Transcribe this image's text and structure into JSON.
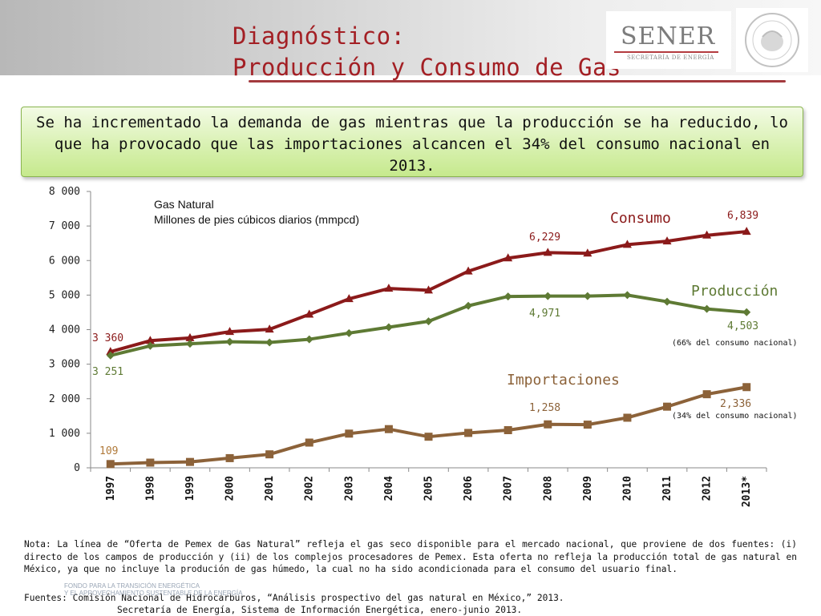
{
  "header": {
    "title_line1": "Diagnóstico:",
    "title_line2": "Producción y Consumo de Gas",
    "logo_text": "SENER",
    "logo_subtext": "SECRETARÍA DE ENERGÍA",
    "seal_text": "ESTADOS UNIDOS MEXICANOS"
  },
  "callout": {
    "text": "Se ha incrementado la demanda de gas mientras que la producción se ha reducido, lo que ha provocado que las importaciones alcancen el 34% del consumo nacional en 2013."
  },
  "chart_data": {
    "type": "line",
    "title": "Gas Natural",
    "subtitle": "Millones de pies cúbicos diarios (mmpcd)",
    "categories": [
      "1997",
      "1998",
      "1999",
      "2000",
      "2001",
      "2002",
      "2003",
      "2004",
      "2005",
      "2006",
      "2007",
      "2008",
      "2009",
      "2010",
      "2011",
      "2012",
      "2013*"
    ],
    "y_ticks": [
      "8 000",
      "7 000",
      "6 000",
      "5 000",
      "4 000",
      "3 000",
      "2 000",
      "1 000",
      "0"
    ],
    "ylim": [
      0,
      8000
    ],
    "grid": false,
    "series": [
      {
        "name": "Consumo",
        "color": "#8b1a1a",
        "marker": "triangle",
        "values": [
          3360,
          3680,
          3760,
          3940,
          4010,
          4440,
          4890,
          5190,
          5140,
          5690,
          6070,
          6229,
          6210,
          6460,
          6560,
          6730,
          6839
        ]
      },
      {
        "name": "Producción",
        "color": "#5e7a34",
        "marker": "diamond",
        "values": [
          3251,
          3530,
          3590,
          3650,
          3630,
          3720,
          3900,
          4070,
          4240,
          4690,
          4960,
          4971,
          4970,
          5000,
          4810,
          4600,
          4503
        ]
      },
      {
        "name": "Importaciones",
        "color": "#8c6239",
        "marker": "square",
        "values": [
          109,
          150,
          170,
          280,
          390,
          730,
          990,
          1120,
          900,
          1010,
          1090,
          1258,
          1250,
          1450,
          1770,
          2130,
          2336
        ]
      }
    ],
    "data_labels": {
      "consumo_1997": "3 360",
      "produccion_1997": "3 251",
      "importaciones_1997": "109",
      "consumo_2008": "6,229",
      "produccion_2008": "4,971",
      "importaciones_2008": "1,258",
      "consumo_2013": "6,839",
      "produccion_2013": "4,503",
      "importaciones_2013": "2,336"
    },
    "annotations": {
      "produccion_share": "(66% del consumo nacional)",
      "importaciones_share": "(34% del consumo nacional)"
    }
  },
  "footer": {
    "note": "Nota: La línea de “Oferta de Pemex de Gas Natural” refleja el gas seco disponible para el mercado nacional, que proviene de dos fuentes: (i) directo de los campos de producción y (ii) de los complejos procesadores de Pemex. Esta oferta no refleja la producción total de gas natural en México, ya que no incluye la produción de gas húmedo, la cual no ha sido acondicionada para el consumo del usuario final.",
    "fuentes_line1": "Fuentes: Comisión Nacional de Hidrocarburos, “Análisis prospectivo del gas natural en México,” 2013.",
    "fuentes_line2": "Secretaría de Energía, Sistema de Información Energética, enero-junio 2013.",
    "watermark_line1": "FONDO PARA LA TRANSICIÓN ENERGÉTICA",
    "watermark_line2": "Y EL APROVECHAMIENTO SUSTENTABLE DE LA ENERGÍA"
  }
}
